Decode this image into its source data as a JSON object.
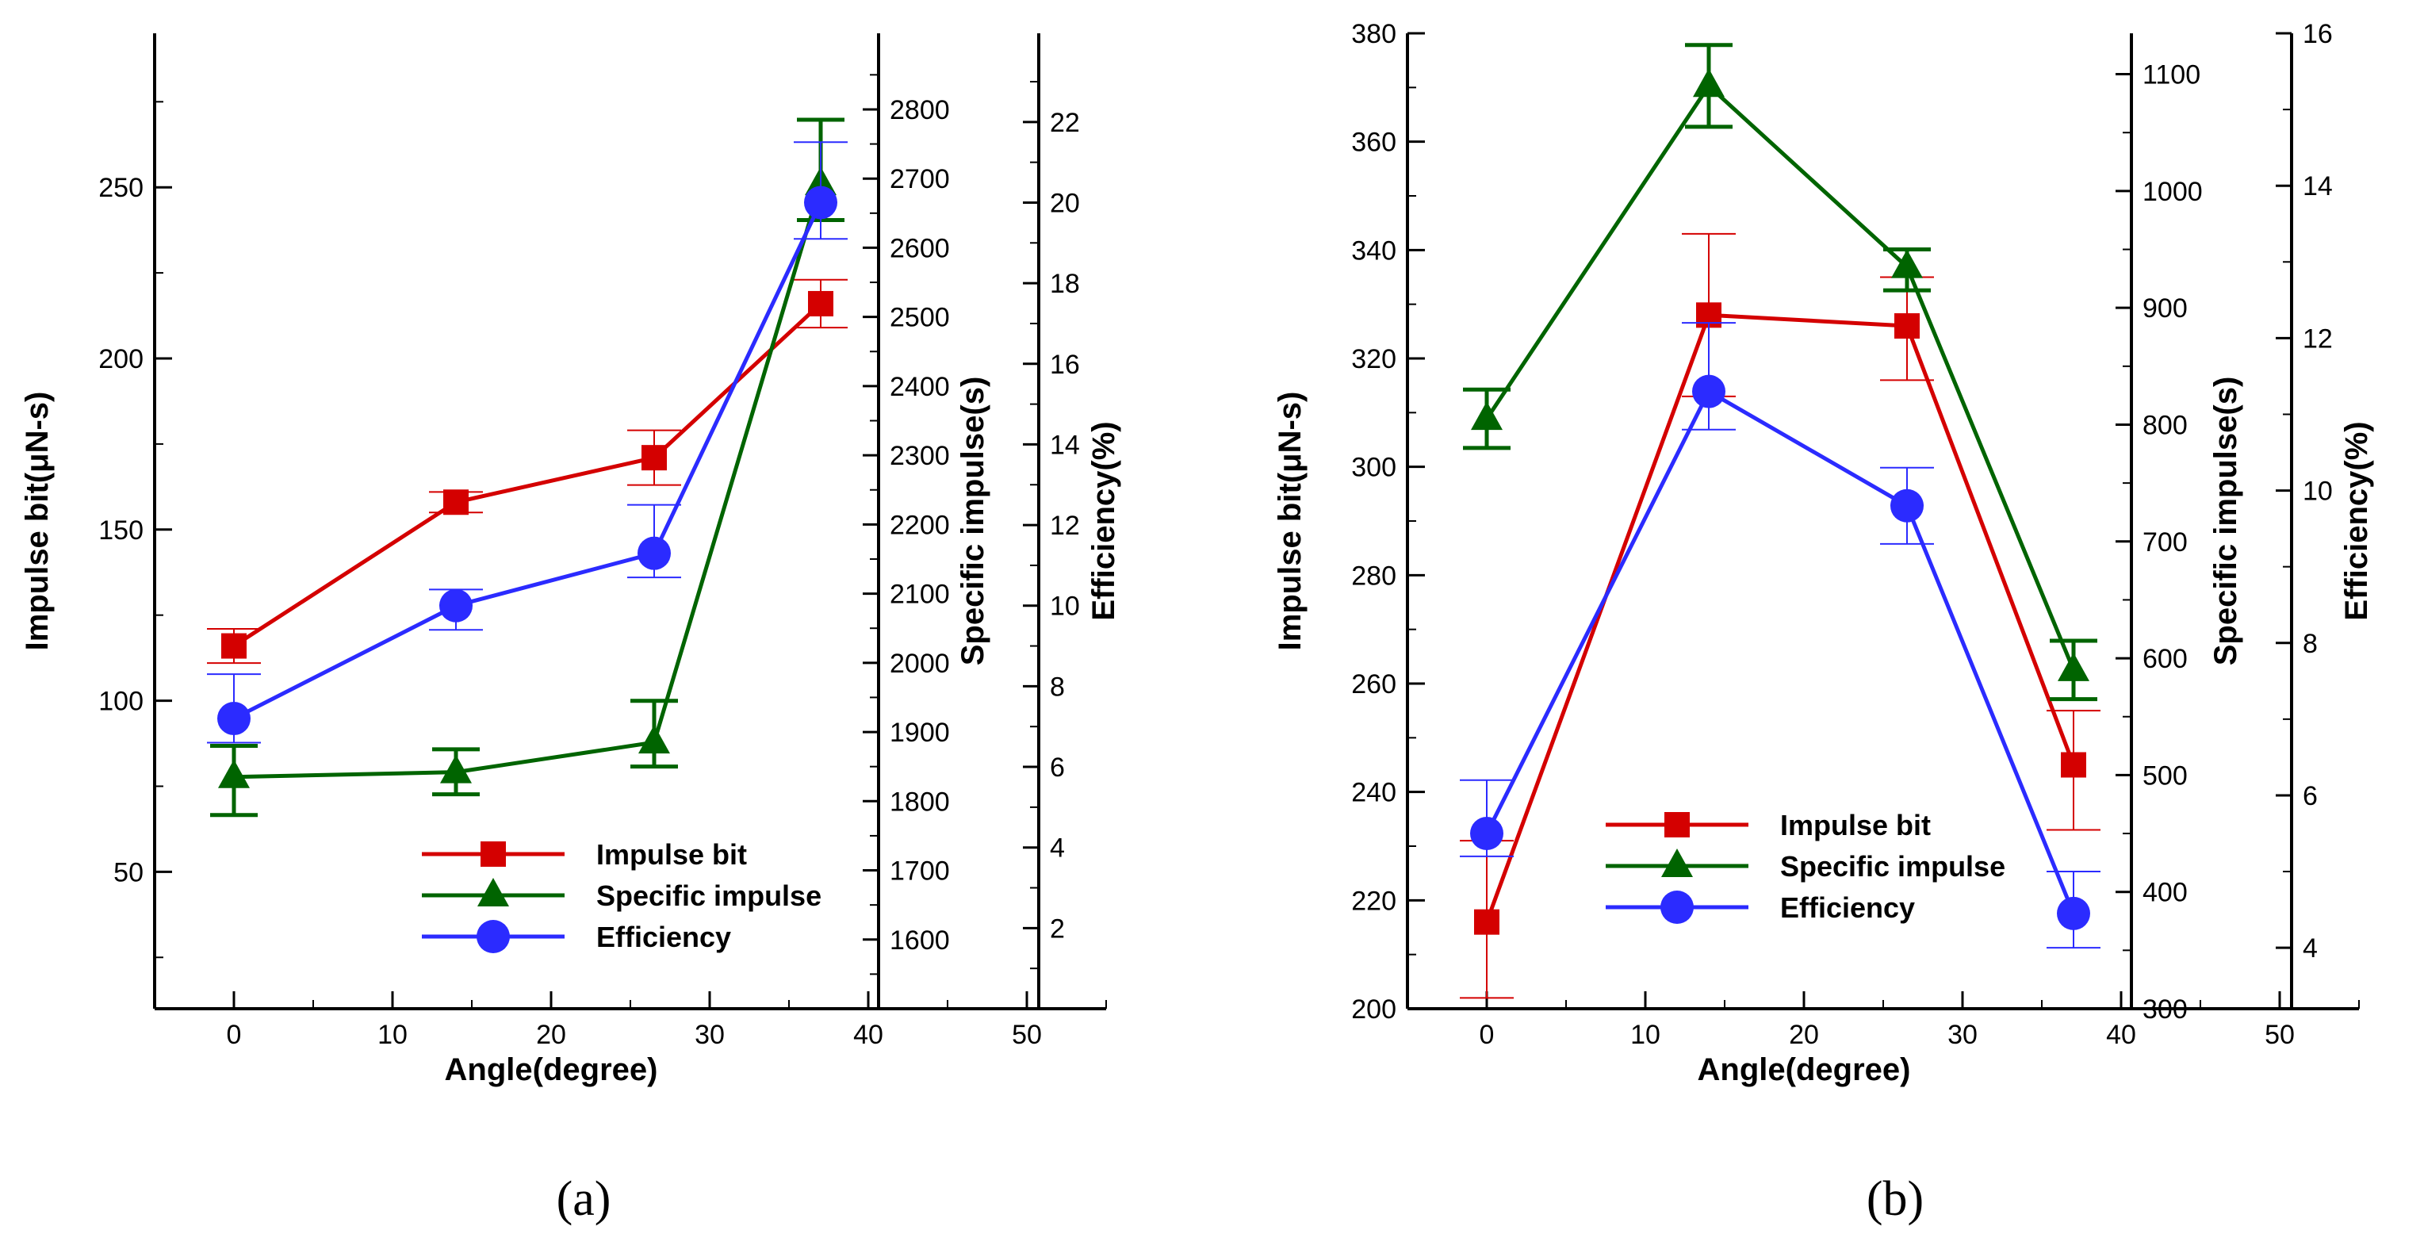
{
  "chart_data": [
    {
      "type": "line",
      "panel_label": "(a)",
      "x": [
        0,
        14,
        26.5,
        37
      ],
      "xlabel": "Angle(degree)",
      "xticks": [
        "0",
        "10",
        "20",
        "30",
        "40",
        "50"
      ],
      "xlim": [
        -5,
        55
      ],
      "axes": [
        {
          "label": "Impulse bit(μN-s)",
          "range": [
            10,
            295
          ],
          "ticks": [
            "50",
            "100",
            "150",
            "200",
            "250"
          ]
        },
        {
          "label": "Specific impulse(s)",
          "range": [
            1500,
            2910
          ],
          "ticks": [
            "1600",
            "1700",
            "1800",
            "1900",
            "2000",
            "2100",
            "2200",
            "2300",
            "2400",
            "2500",
            "2600",
            "2700",
            "2800"
          ]
        },
        {
          "label": "Efficiency(%)",
          "range": [
            0,
            24.2
          ],
          "ticks": [
            "2",
            "4",
            "6",
            "8",
            "10",
            "12",
            "14",
            "16",
            "18",
            "20",
            "22"
          ]
        }
      ],
      "series": [
        {
          "name": "Impulse bit",
          "axis": 0,
          "color": "#d40000",
          "marker": "square",
          "values": [
            116,
            158,
            171,
            216
          ],
          "err": [
            [
              111,
              121
            ],
            [
              155,
              161
            ],
            [
              163,
              179
            ],
            [
              209,
              223
            ]
          ]
        },
        {
          "name": "Specific impulse",
          "axis": 1,
          "color": "#006400",
          "marker": "triangle",
          "values": [
            1835,
            1842,
            1885,
            2692
          ],
          "err": [
            [
              1780,
              1880
            ],
            [
              1810,
              1875
            ],
            [
              1850,
              1945
            ],
            [
              2640,
              2785
            ]
          ]
        },
        {
          "name": "Efficiency",
          "axis": 2,
          "color": "#2b2bff",
          "marker": "circle",
          "values": [
            7.2,
            10.0,
            11.3,
            20.0
          ],
          "err": [
            [
              6.6,
              8.3
            ],
            [
              9.4,
              10.4
            ],
            [
              10.7,
              12.5
            ],
            [
              19.1,
              21.5
            ]
          ]
        }
      ],
      "legend": {
        "position": "bottom-right",
        "entries": [
          "Impulse bit",
          "Specific impulse",
          "Efficiency"
        ]
      }
    },
    {
      "type": "line",
      "panel_label": "(b)",
      "x": [
        0,
        14,
        26.5,
        37
      ],
      "xlabel": "Angle(degree)",
      "xticks": [
        "0",
        "10",
        "20",
        "30",
        "40",
        "50"
      ],
      "xlim": [
        -5,
        55
      ],
      "axes": [
        {
          "label": "Impulse bit(μN-s)",
          "range": [
            200,
            380
          ],
          "ticks": [
            "200",
            "220",
            "240",
            "260",
            "280",
            "300",
            "320",
            "340",
            "360",
            "380"
          ]
        },
        {
          "label": "Specific impulse(s)",
          "range": [
            300,
            1135
          ],
          "ticks": [
            "300",
            "400",
            "500",
            "600",
            "700",
            "800",
            "900",
            "1000",
            "1100"
          ]
        },
        {
          "label": "Efficiency(%)",
          "range": [
            3.2,
            16
          ],
          "ticks": [
            "4",
            "6",
            "8",
            "10",
            "12",
            "14",
            "16"
          ]
        }
      ],
      "series": [
        {
          "name": "Impulse bit",
          "axis": 0,
          "color": "#d40000",
          "marker": "square",
          "values": [
            216,
            328,
            326,
            245
          ],
          "err": [
            [
              202,
              231
            ],
            [
              313,
              343
            ],
            [
              316,
              335
            ],
            [
              233,
              255
            ]
          ]
        },
        {
          "name": "Specific impulse",
          "axis": 1,
          "color": "#006400",
          "marker": "triangle",
          "values": [
            805,
            1090,
            935,
            590
          ],
          "err": [
            [
              780,
              830
            ],
            [
              1055,
              1125
            ],
            [
              915,
              950
            ],
            [
              565,
              615
            ]
          ]
        },
        {
          "name": "Efficiency",
          "axis": 2,
          "color": "#2b2bff",
          "marker": "circle",
          "values": [
            5.5,
            11.3,
            9.8,
            4.45
          ],
          "err": [
            [
              5.2,
              6.2
            ],
            [
              10.8,
              12.2
            ],
            [
              9.3,
              10.3
            ],
            [
              4.0,
              5.0
            ]
          ]
        }
      ],
      "legend": {
        "position": "bottom-center",
        "entries": [
          "Impulse bit",
          "Specific impulse",
          "Efficiency"
        ]
      }
    }
  ]
}
